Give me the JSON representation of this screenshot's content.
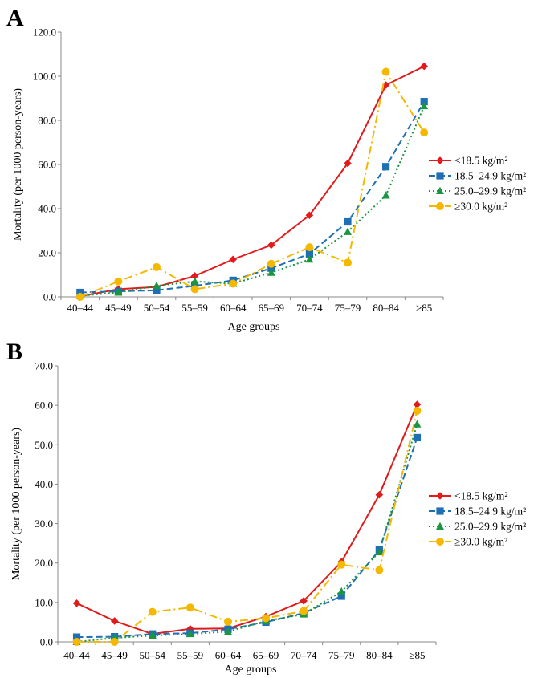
{
  "chart_data": [
    {
      "panel_label": "A",
      "type": "line",
      "xlabel": "Age groups",
      "ylabel": "Mortality (per 1000 person-years)",
      "ylim": [
        0,
        120
      ],
      "y_ticks": [
        "0.0",
        "20.0",
        "40.0",
        "60.0",
        "80.0",
        "100.0",
        "120.0"
      ],
      "categories": [
        "40–44",
        "45–49",
        "50–54",
        "55–59",
        "60–64",
        "65–69",
        "70–74",
        "75–79",
        "80–84",
        "≥85"
      ],
      "grid": false,
      "legend_position": "right",
      "series": [
        {
          "name": "<18.5 kg/m²",
          "color": "#e31a1c",
          "dash": "solid",
          "marker": "diamond",
          "values": [
            0.3,
            3.5,
            4.5,
            9.5,
            17.0,
            23.5,
            37.0,
            60.5,
            96.0,
            104.5
          ]
        },
        {
          "name": "18.5–24.9 kg/m²",
          "color": "#1f6fb5",
          "dash": "dashed",
          "marker": "square",
          "values": [
            2.0,
            2.5,
            3.0,
            5.0,
            7.5,
            13.0,
            19.5,
            34.0,
            59.0,
            88.5
          ]
        },
        {
          "name": "25.0–29.9 kg/m²",
          "color": "#1a9641",
          "dash": "dotted",
          "marker": "triangle",
          "values": [
            0.5,
            2.0,
            5.0,
            7.0,
            6.0,
            11.0,
            17.0,
            29.5,
            46.0,
            86.5
          ]
        },
        {
          "name": "≥30.0 kg/m²",
          "color": "#f5b800",
          "dash": "dashdot",
          "marker": "circle",
          "values": [
            0.0,
            7.0,
            13.5,
            3.5,
            6.0,
            15.0,
            22.5,
            15.5,
            102.0,
            74.5
          ]
        }
      ]
    },
    {
      "panel_label": "B",
      "type": "line",
      "xlabel": "Age groups",
      "ylabel": "Mortality (per 1000 person-years)",
      "ylim": [
        0,
        70
      ],
      "y_ticks": [
        "0.0",
        "10.0",
        "20.0",
        "30.0",
        "40.0",
        "50.0",
        "60.0",
        "70.0"
      ],
      "categories": [
        "40–44",
        "45–49",
        "50–54",
        "55–59",
        "60–64",
        "65–69",
        "70–74",
        "75–79",
        "80–84",
        "≥85"
      ],
      "grid": false,
      "legend_position": "right",
      "series": [
        {
          "name": "<18.5 kg/m²",
          "color": "#e31a1c",
          "dash": "solid",
          "marker": "diamond",
          "values": [
            9.8,
            5.3,
            2.0,
            3.3,
            3.4,
            6.4,
            10.4,
            20.3,
            37.3,
            60.2
          ]
        },
        {
          "name": "18.5–24.9 kg/m²",
          "color": "#1f6fb5",
          "dash": "dashed",
          "marker": "square",
          "values": [
            1.2,
            1.3,
            2.0,
            2.2,
            3.2,
            5.0,
            7.3,
            11.6,
            23.3,
            51.8
          ]
        },
        {
          "name": "25.0–29.9 kg/m²",
          "color": "#1a9641",
          "dash": "dotted",
          "marker": "triangle",
          "values": [
            0.0,
            1.0,
            1.6,
            2.0,
            2.6,
            5.3,
            7.0,
            12.8,
            22.8,
            55.2
          ]
        },
        {
          "name": "≥30.0 kg/m²",
          "color": "#f5b800",
          "dash": "dashdot",
          "marker": "circle",
          "values": [
            0.0,
            0.0,
            7.6,
            8.7,
            5.1,
            6.0,
            7.8,
            19.6,
            18.2,
            58.6
          ]
        }
      ]
    }
  ]
}
